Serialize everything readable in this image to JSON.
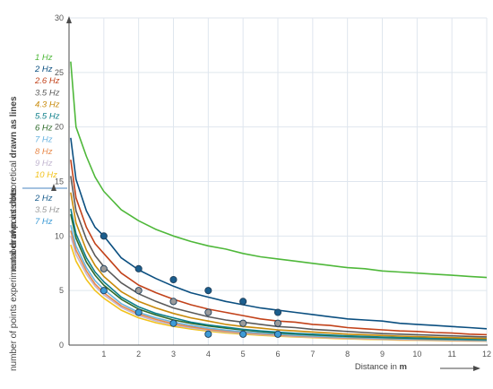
{
  "chart_data": {
    "type": "line",
    "title": "",
    "xlabel": {
      "text": "Distance in ",
      "bold": "m"
    },
    "ylabel_lines": {
      "text": "number of points theoretical ",
      "bold": "drawn as lines"
    },
    "ylabel_dots": {
      "text": "number of points experimental ",
      "bold": "drawn as dots"
    },
    "xlim": [
      0,
      12
    ],
    "ylim": [
      0,
      30
    ],
    "xticks": [
      1,
      2,
      3,
      4,
      5,
      6,
      7,
      8,
      9,
      10,
      11,
      12
    ],
    "yticks": [
      0,
      5,
      10,
      15,
      20,
      25,
      30
    ],
    "grid": true,
    "legend_placement": "left",
    "x": [
      0.05,
      0.2,
      0.5,
      0.75,
      1,
      1.5,
      2,
      2.5,
      3,
      3.5,
      4,
      4.5,
      5,
      5.5,
      6,
      6.5,
      7,
      7.5,
      8,
      8.5,
      9,
      9.5,
      10,
      10.5,
      11,
      11.5,
      12
    ],
    "series": [
      {
        "name": "1 Hz",
        "color": "#4fb83a",
        "values": [
          26,
          20.0,
          17.3,
          15.4,
          14.1,
          12.4,
          11.4,
          10.6,
          10.0,
          9.5,
          9.1,
          8.8,
          8.4,
          8.1,
          7.9,
          7.7,
          7.5,
          7.3,
          7.1,
          7.0,
          6.8,
          6.7,
          6.6,
          6.5,
          6.4,
          6.3,
          6.2
        ]
      },
      {
        "name": "2 Hz",
        "color": "#0b4f80",
        "values": [
          19,
          15.2,
          12.3,
          10.8,
          10.0,
          8.0,
          6.9,
          6.1,
          5.4,
          4.8,
          4.4,
          4.0,
          3.7,
          3.4,
          3.2,
          3.0,
          2.8,
          2.6,
          2.4,
          2.3,
          2.2,
          2.0,
          1.9,
          1.8,
          1.7,
          1.6,
          1.5
        ]
      },
      {
        "name": "2.6 Hz",
        "color": "#c2421a",
        "values": [
          17,
          13.5,
          10.8,
          9.3,
          8.4,
          6.6,
          5.5,
          4.8,
          4.2,
          3.7,
          3.3,
          3.0,
          2.7,
          2.4,
          2.2,
          2.1,
          1.9,
          1.8,
          1.6,
          1.5,
          1.4,
          1.3,
          1.25,
          1.15,
          1.1,
          1.0,
          0.95
        ]
      },
      {
        "name": "3.5 Hz",
        "color": "#5a5a5a",
        "values": [
          15.5,
          12.3,
          9.7,
          8.2,
          7.2,
          5.7,
          4.7,
          4.0,
          3.4,
          3.0,
          2.6,
          2.3,
          2.1,
          1.9,
          1.7,
          1.6,
          1.45,
          1.35,
          1.25,
          1.15,
          1.05,
          1.0,
          0.95,
          0.9,
          0.85,
          0.8,
          0.75
        ]
      },
      {
        "name": "4.3 Hz",
        "color": "#c88a0a",
        "values": [
          14,
          11.2,
          8.7,
          7.3,
          6.3,
          4.9,
          4.0,
          3.4,
          2.9,
          2.5,
          2.2,
          1.9,
          1.7,
          1.55,
          1.4,
          1.3,
          1.2,
          1.1,
          1.0,
          0.95,
          0.88,
          0.82,
          0.77,
          0.72,
          0.68,
          0.64,
          0.6
        ]
      },
      {
        "name": "5.5 Hz",
        "color": "#0e7f8a",
        "values": [
          12.5,
          10.2,
          8.0,
          6.7,
          5.8,
          4.4,
          3.5,
          2.9,
          2.5,
          2.1,
          1.85,
          1.65,
          1.45,
          1.3,
          1.18,
          1.08,
          1.0,
          0.92,
          0.85,
          0.8,
          0.74,
          0.7,
          0.65,
          0.62,
          0.58,
          0.55,
          0.52
        ]
      },
      {
        "name": "6 Hz",
        "color": "#2f6b2b",
        "values": [
          12,
          9.8,
          7.6,
          6.4,
          5.5,
          4.2,
          3.3,
          2.75,
          2.3,
          2.0,
          1.75,
          1.55,
          1.38,
          1.24,
          1.12,
          1.02,
          0.94,
          0.87,
          0.8,
          0.75,
          0.7,
          0.65,
          0.61,
          0.58,
          0.55,
          0.52,
          0.49
        ]
      },
      {
        "name": "7 Hz",
        "color": "#6ab4e0",
        "values": [
          11,
          9.1,
          7.1,
          5.9,
          5.1,
          3.8,
          3.0,
          2.5,
          2.1,
          1.8,
          1.55,
          1.37,
          1.22,
          1.1,
          1.0,
          0.9,
          0.83,
          0.76,
          0.71,
          0.66,
          0.61,
          0.57,
          0.54,
          0.51,
          0.48,
          0.45,
          0.43
        ]
      },
      {
        "name": "8 Hz",
        "color": "#e8894a",
        "values": [
          10.5,
          8.7,
          6.8,
          5.6,
          4.8,
          3.6,
          2.85,
          2.35,
          1.95,
          1.68,
          1.45,
          1.28,
          1.14,
          1.02,
          0.92,
          0.84,
          0.77,
          0.71,
          0.66,
          0.61,
          0.57,
          0.53,
          0.5,
          0.47,
          0.44,
          0.42,
          0.4
        ]
      },
      {
        "name": "9 Hz",
        "color": "#c3b7d1",
        "values": [
          10,
          8.3,
          6.5,
          5.4,
          4.6,
          3.45,
          2.7,
          2.2,
          1.85,
          1.58,
          1.37,
          1.2,
          1.07,
          0.96,
          0.87,
          0.79,
          0.72,
          0.66,
          0.61,
          0.57,
          0.53,
          0.5,
          0.47,
          0.44,
          0.41,
          0.39,
          0.37
        ]
      },
      {
        "name": "10 Hz",
        "color": "#f2c21b",
        "values": [
          9.2,
          7.7,
          6.0,
          5.0,
          4.3,
          3.2,
          2.5,
          2.05,
          1.72,
          1.47,
          1.27,
          1.12,
          1.0,
          0.9,
          0.81,
          0.74,
          0.68,
          0.62,
          0.57,
          0.53,
          0.5,
          0.46,
          0.44,
          0.41,
          0.39,
          0.37,
          0.35
        ]
      }
    ],
    "dot_series": [
      {
        "name": "2 Hz",
        "color": "#1b5e8e",
        "points": [
          [
            1,
            10
          ],
          [
            2,
            7
          ],
          [
            3,
            6
          ],
          [
            4,
            5
          ],
          [
            5,
            4
          ],
          [
            6,
            3
          ]
        ]
      },
      {
        "name": "3.5 Hz",
        "color": "#9a9a9a",
        "points": [
          [
            1,
            7
          ],
          [
            2,
            5
          ],
          [
            3,
            4
          ],
          [
            4,
            3
          ],
          [
            5,
            2
          ],
          [
            6,
            2
          ]
        ]
      },
      {
        "name": "7 Hz",
        "color": "#3d9bd6",
        "points": [
          [
            1,
            5
          ],
          [
            2,
            3
          ],
          [
            3,
            2
          ],
          [
            4,
            1
          ],
          [
            5,
            1
          ],
          [
            6,
            1
          ]
        ]
      }
    ]
  }
}
